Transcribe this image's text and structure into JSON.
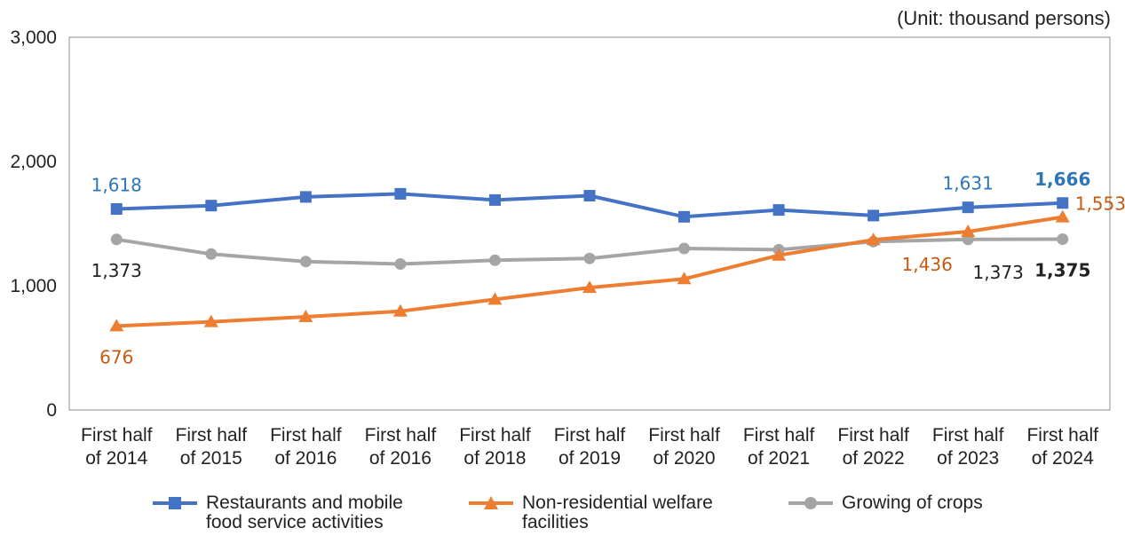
{
  "unit_label": "(Unit: thousand persons)",
  "chart_data": {
    "type": "line",
    "title": "",
    "xlabel": "",
    "ylabel": "",
    "ylim": [
      0,
      3000
    ],
    "yticks": [
      "3,000",
      "2,000",
      "1,000",
      "0"
    ],
    "ytick_values": [
      3000,
      2000,
      1000,
      0
    ],
    "categories": [
      [
        "First half",
        "of 2014"
      ],
      [
        "First half",
        "of 2015"
      ],
      [
        "First half",
        "of 2016"
      ],
      [
        "First half",
        "of 2016"
      ],
      [
        "First half",
        "of 2018"
      ],
      [
        "First half",
        "of 2019"
      ],
      [
        "First half",
        "of 2020"
      ],
      [
        "First half",
        "of 2021"
      ],
      [
        "First half",
        "of 2022"
      ],
      [
        "First half",
        "of 2023"
      ],
      [
        "First half",
        "of 2024"
      ]
    ],
    "legend_position": "bottom",
    "grid": false,
    "series": [
      {
        "name": "Restaurants and mobile\nfood service activities",
        "color": "#4472c4",
        "label_color": "#2e75b6",
        "marker": "square",
        "values": [
          1618,
          1645,
          1715,
          1740,
          1690,
          1725,
          1555,
          1610,
          1565,
          1631,
          1666
        ],
        "labels": [
          {
            "index": 0,
            "text": "1,618",
            "pos": "above"
          },
          {
            "index": 9,
            "text": "1,631",
            "pos": "above"
          },
          {
            "index": 10,
            "text": "1,666",
            "pos": "above",
            "bold": true
          }
        ]
      },
      {
        "name": "Non-residential welfare\nfacilities",
        "color": "#ed7d31",
        "label_color": "#c55a11",
        "marker": "triangle",
        "values": [
          676,
          710,
          750,
          795,
          890,
          985,
          1055,
          1245,
          1370,
          1436,
          1553
        ],
        "labels": [
          {
            "index": 0,
            "text": "676",
            "pos": "below"
          },
          {
            "index": 9,
            "text": "1,436",
            "pos": "below-left"
          },
          {
            "index": 10,
            "text": "1,553",
            "pos": "right"
          }
        ]
      },
      {
        "name": "Growing of crops",
        "color": "#a5a5a5",
        "label_color": "#222222",
        "marker": "circle",
        "values": [
          1373,
          1255,
          1195,
          1175,
          1205,
          1220,
          1300,
          1290,
          1355,
          1373,
          1375
        ],
        "labels": [
          {
            "index": 0,
            "text": "1,373",
            "pos": "below"
          },
          {
            "index": 9,
            "text": "1,373",
            "pos": "below-right"
          },
          {
            "index": 10,
            "text": "1,375",
            "pos": "below",
            "bold": true
          }
        ]
      }
    ]
  }
}
